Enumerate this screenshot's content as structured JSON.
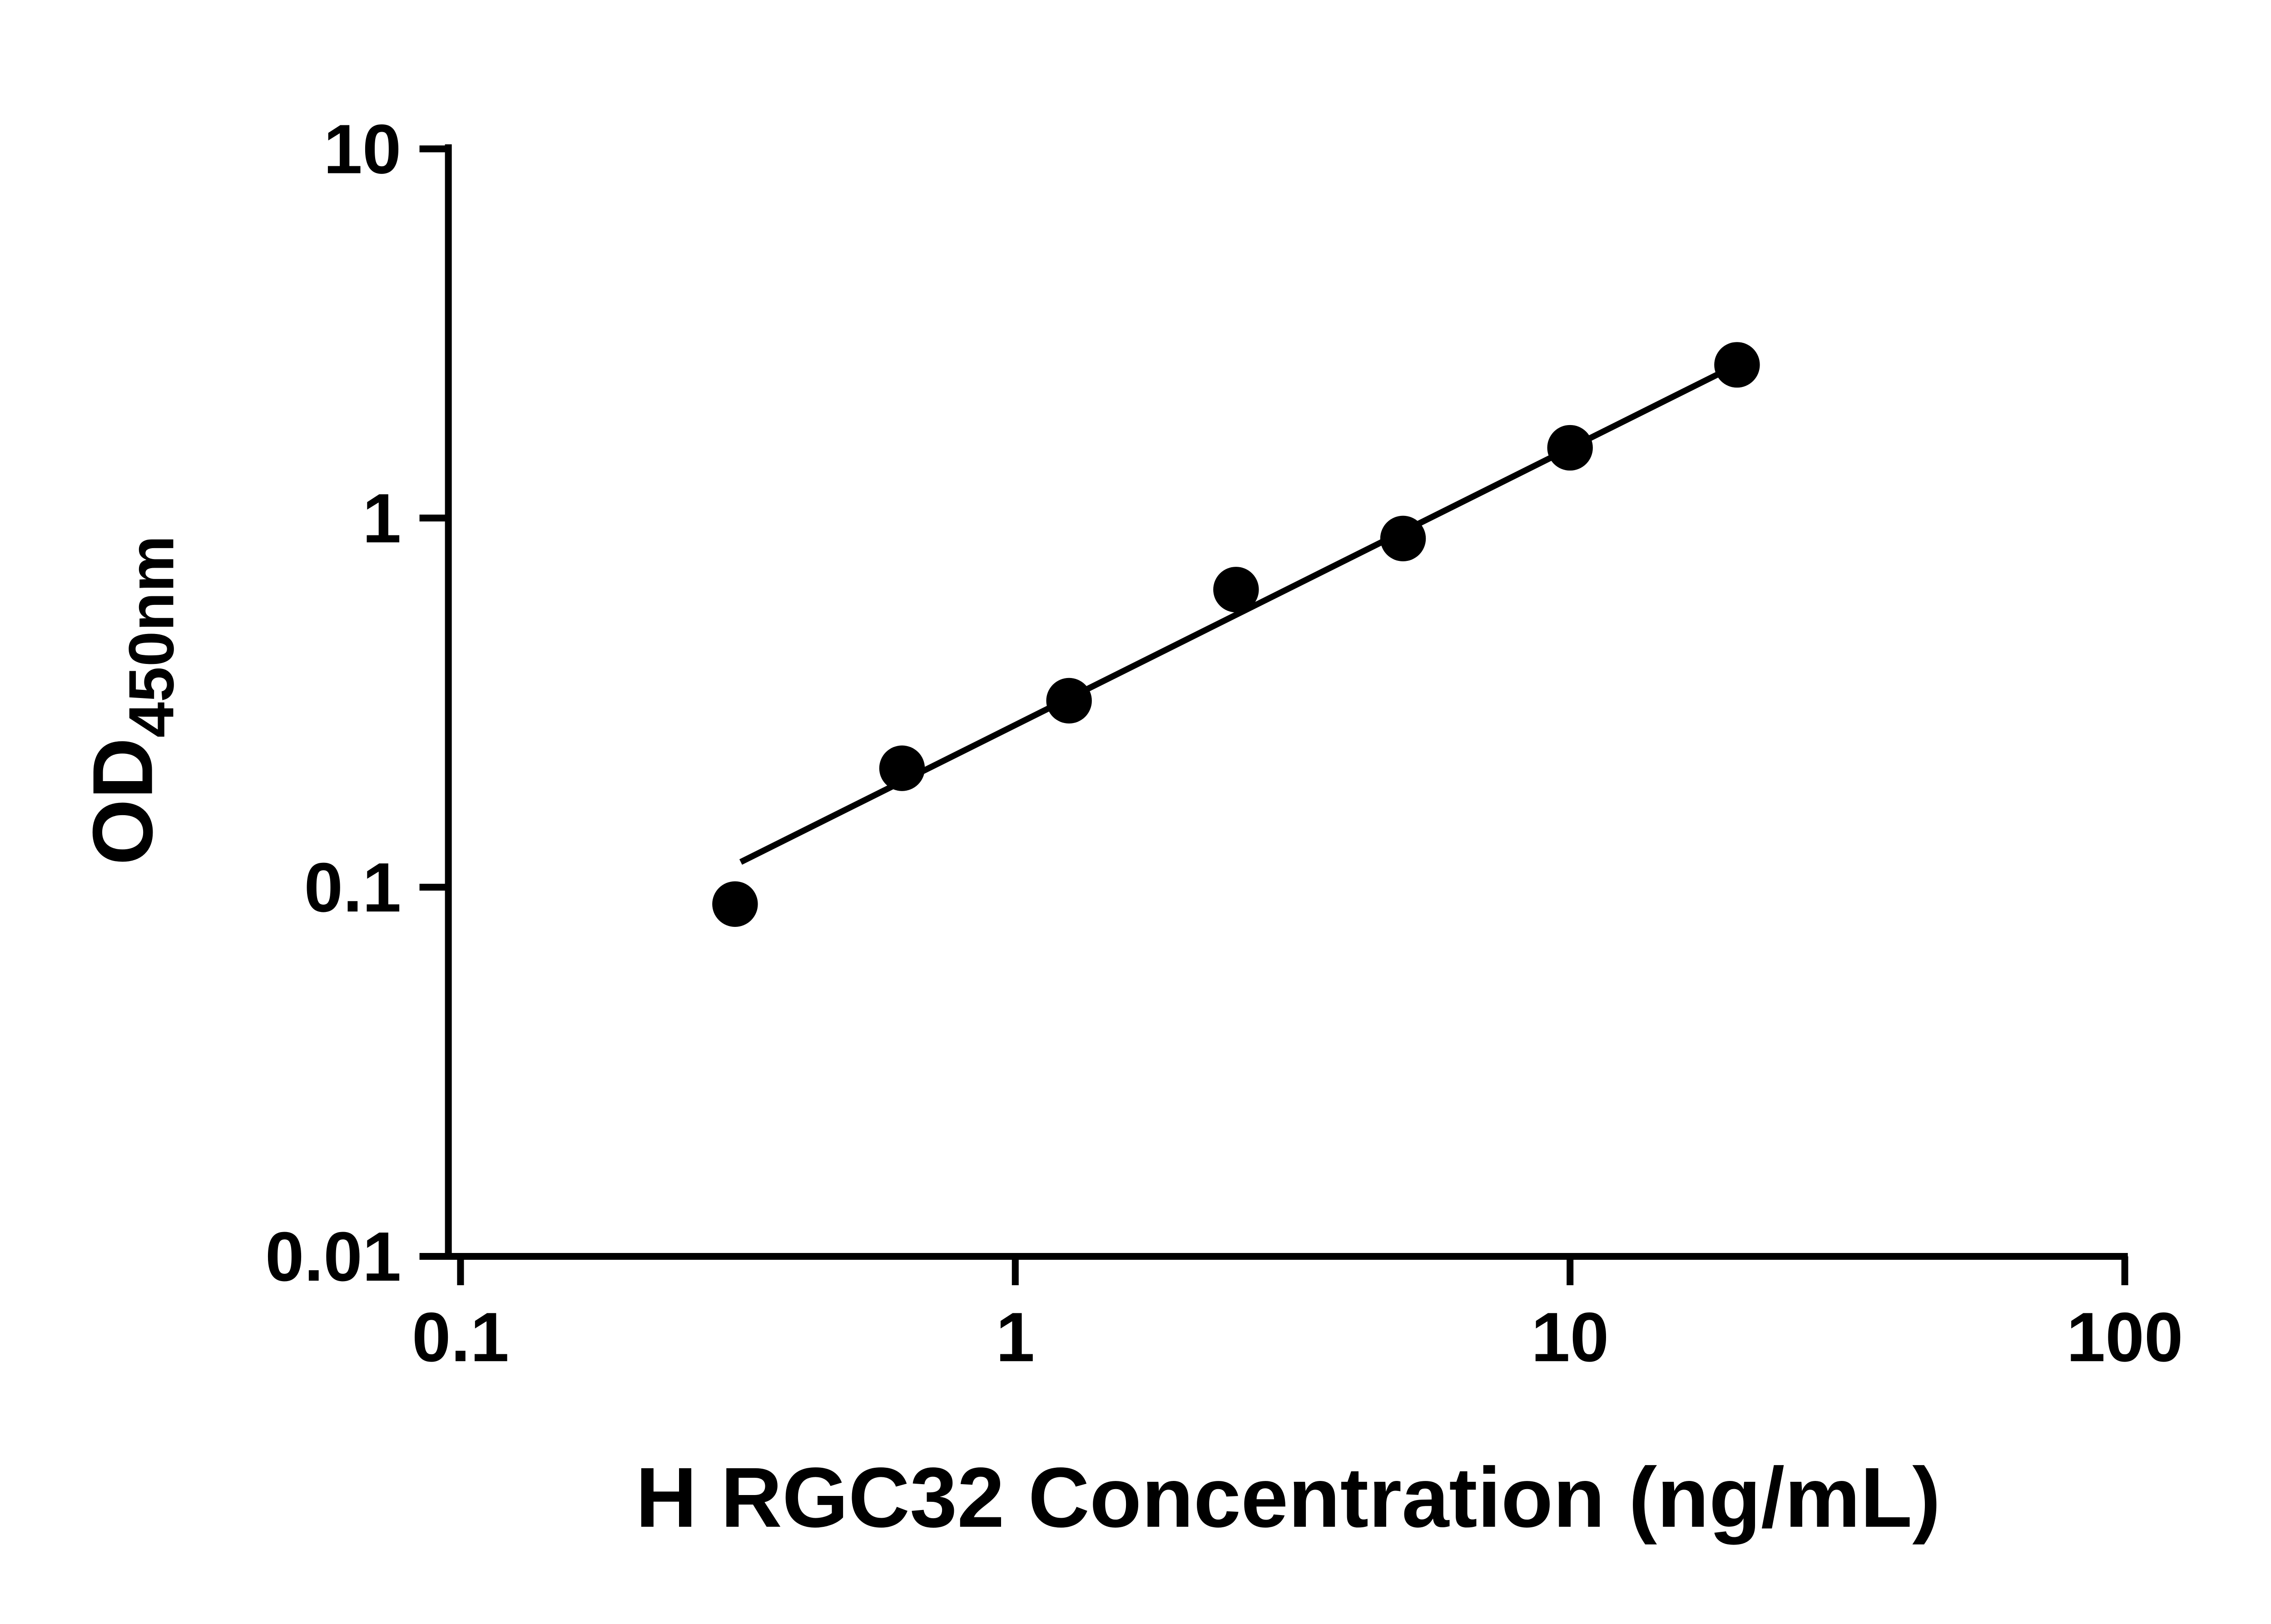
{
  "chart_data": {
    "type": "scatter",
    "title": "",
    "xlabel": "H RGC32 Concentration (ng/mL)",
    "ylabel_main": "OD",
    "ylabel_sub": "450nm",
    "x_scale": "log",
    "y_scale": "log",
    "xlim": [
      0.1,
      100
    ],
    "ylim": [
      0.01,
      10
    ],
    "grid": "off",
    "legend": "none",
    "x_ticks": [
      {
        "value": 0.1,
        "label": "0.1"
      },
      {
        "value": 1,
        "label": "1"
      },
      {
        "value": 10,
        "label": "10"
      },
      {
        "value": 100,
        "label": "100"
      }
    ],
    "y_ticks": [
      {
        "value": 0.01,
        "label": "0.01"
      },
      {
        "value": 0.1,
        "label": "0.1"
      },
      {
        "value": 1,
        "label": "1"
      },
      {
        "value": 10,
        "label": "10"
      }
    ],
    "points": [
      {
        "x": 0.3125,
        "y": 0.09
      },
      {
        "x": 0.625,
        "y": 0.21
      },
      {
        "x": 1.25,
        "y": 0.32
      },
      {
        "x": 2.5,
        "y": 0.64
      },
      {
        "x": 5,
        "y": 0.88
      },
      {
        "x": 10,
        "y": 1.55
      },
      {
        "x": 20,
        "y": 2.6
      }
    ],
    "trend_line": {
      "x1": 0.32,
      "y1": 0.117,
      "x2": 20.5,
      "y2": 2.65
    },
    "colors": {
      "foreground": "#000000",
      "background": "#ffffff"
    }
  }
}
